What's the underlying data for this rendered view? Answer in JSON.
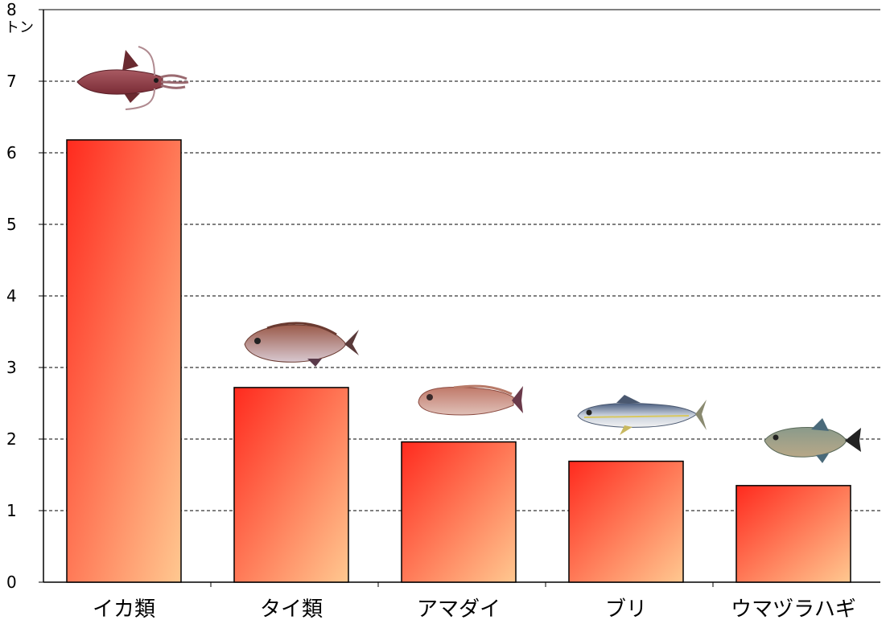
{
  "chart_data": {
    "type": "bar",
    "unit": "トン",
    "ylim": [
      0,
      8
    ],
    "yticks": [
      "0",
      "1",
      "2",
      "3",
      "4",
      "5",
      "6",
      "7",
      "8"
    ],
    "grid": true,
    "categories": [
      "イカ類",
      "タイ類",
      "アマダイ",
      "ブリ",
      "ウマヅラハギ"
    ],
    "values": [
      6.18,
      2.72,
      1.96,
      1.69,
      1.35
    ],
    "pictures": [
      "squid-icon",
      "sea-bream-icon",
      "tilefish-icon",
      "yellowtail-icon",
      "filefish-icon"
    ],
    "colors": {
      "gradient_start": "#ff2a1e",
      "gradient_end": "#ffc890",
      "bar_border": "#000000",
      "grid": "#000000"
    }
  }
}
